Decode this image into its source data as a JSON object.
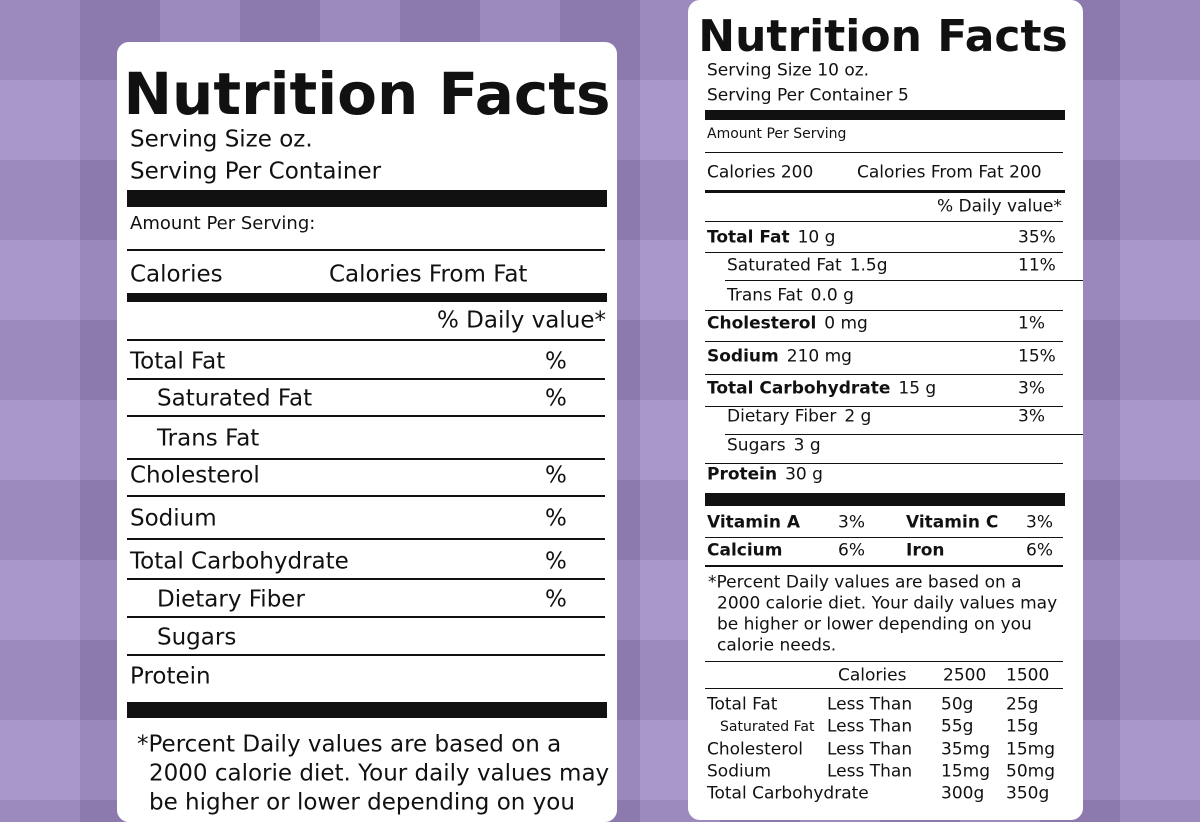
{
  "left_label": {
    "title": "Nutrition Facts",
    "serving_size": "Serving Size oz.",
    "servings_per_container": "Serving Per Container",
    "amount_per_serving": "Amount Per Serving:",
    "calories": "Calories",
    "calories_from_fat": "Calories From Fat",
    "daily_value_header": "% Daily value*",
    "nutrients": [
      {
        "name": "Total Fat",
        "percent": "%"
      },
      {
        "name": "Saturated Fat",
        "percent": "%"
      },
      {
        "name": "Trans Fat"
      },
      {
        "name": "Cholesterol",
        "percent": "%"
      },
      {
        "name": "Sodium",
        "percent": "%"
      },
      {
        "name": "Total Carbohydrate",
        "percent": "%"
      },
      {
        "name": "Dietary Fiber",
        "percent": "%"
      },
      {
        "name": "Sugars"
      },
      {
        "name": "Protein"
      }
    ],
    "footnote": [
      "*Percent Daily values are based on a",
      "2000 calorie diet. Your daily values may",
      "be higher or lower depending on you"
    ]
  },
  "right_label": {
    "title": "Nutrition Facts",
    "serving_size": "Serving Size 10 oz.",
    "servings_per_container": "Serving Per Container 5",
    "amount_per_serving": "Amount Per Serving",
    "calories": "Calories 200",
    "calories_from_fat": "Calories From Fat 200",
    "daily_value_header": "% Daily value*",
    "nutrients": [
      {
        "name": "Total Fat",
        "amount": "10 g",
        "percent": "35%"
      },
      {
        "name": "Saturated Fat",
        "amount": "1.5g",
        "percent": "11%"
      },
      {
        "name": "Trans Fat",
        "amount": "0.0 g"
      },
      {
        "name": "Cholesterol",
        "amount": "0 mg",
        "percent": "1%"
      },
      {
        "name": "Sodium",
        "amount": "210 mg",
        "percent": "15%"
      },
      {
        "name": "Total Carbohydrate",
        "amount": "15 g",
        "percent": "3%"
      },
      {
        "name": "Dietary Fiber",
        "amount": "2 g",
        "percent": "3%"
      },
      {
        "name": "Sugars",
        "amount": "3 g"
      },
      {
        "name": "Protein",
        "amount": "30 g"
      }
    ],
    "vitamins": [
      {
        "name": "Vitamin A",
        "percent": "3%"
      },
      {
        "name": "Vitamin C",
        "percent": "3%"
      },
      {
        "name": "Calcium",
        "percent": "6%"
      },
      {
        "name": "Iron",
        "percent": "6%"
      }
    ],
    "footnote": [
      "*Percent Daily values are based on a",
      "2000 calorie diet. Your daily values may",
      "be higher or lower depending on you",
      "calorie needs."
    ],
    "reference": {
      "header": [
        "Calories",
        "2500",
        "1500"
      ],
      "rows": [
        {
          "nutrient": "Total Fat",
          "limit": "Less Than",
          "v2500": "50g",
          "v1500": "25g"
        },
        {
          "nutrient": "Saturated Fat",
          "limit": "Less Than",
          "v2500": "55g",
          "v1500": "15g"
        },
        {
          "nutrient": "Cholesterol",
          "limit": "Less Than",
          "v2500": "35mg",
          "v1500": "15mg"
        },
        {
          "nutrient": "Sodium",
          "limit": "Less Than",
          "v2500": "15mg",
          "v1500": "50mg"
        },
        {
          "nutrient": "Total Carbohydrate",
          "v2500": "300g",
          "v1500": "350g"
        }
      ]
    }
  }
}
